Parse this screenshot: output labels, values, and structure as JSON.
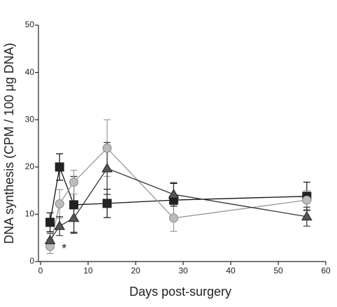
{
  "chart_data": {
    "type": "line",
    "x_label": "Days post-surgery",
    "y_label": "DNA synthesis (CPM / 100 μg DNA)",
    "annotation": "*",
    "annotation_at": [
      4,
      3
    ],
    "x": [
      2,
      4,
      7,
      14,
      28,
      56
    ],
    "series": [
      {
        "marker": "square",
        "color": "#222222",
        "line_color": "#111111",
        "values": [
          8.3,
          20,
          12,
          12.3,
          13,
          13.8
        ],
        "errors": [
          2,
          2.8,
          6,
          3,
          3.5,
          3
        ]
      },
      {
        "marker": "circle",
        "color": "#bbbbbb",
        "line_color": "#999999",
        "values": [
          3.2,
          12.2,
          16.8,
          24,
          9.2,
          13
        ],
        "errors": [
          1.5,
          3,
          2.5,
          6,
          2.8,
          2
        ]
      },
      {
        "marker": "triangle",
        "color": "#555555",
        "line_color": "#333333",
        "values": [
          4.5,
          7.5,
          9.2,
          19.7,
          14.2,
          9.5
        ],
        "errors": [
          1.5,
          2,
          3,
          5.5,
          2.5,
          2
        ]
      }
    ],
    "xlim": [
      0,
      60
    ],
    "xticks": [
      0,
      10,
      20,
      30,
      40,
      50,
      60
    ],
    "ylim": [
      0,
      50
    ],
    "yticks": [
      0,
      10,
      20,
      30,
      40,
      50
    ],
    "grid": false
  }
}
